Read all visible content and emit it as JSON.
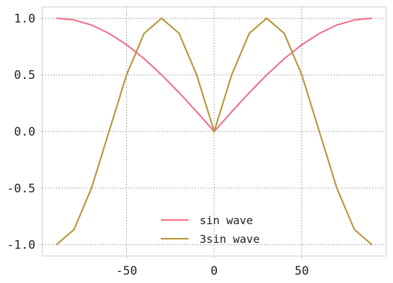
{
  "chart_data": {
    "type": "line",
    "title": "",
    "xlabel": "",
    "ylabel": "",
    "xlim": [
      -98.1,
      98.1
    ],
    "ylim": [
      -1.1,
      1.1
    ],
    "grid": true,
    "legend_position": "lower-center",
    "x_ticks": [
      -50,
      0,
      50
    ],
    "x_tick_labels": [
      "-50",
      "0",
      "50"
    ],
    "y_ticks": [
      1.0,
      0.5,
      0.0,
      -0.5,
      -1.0
    ],
    "y_tick_labels": [
      "1.0",
      "0.5",
      "0.0",
      "-0.5",
      "-1.0"
    ],
    "x": [
      -90,
      -80,
      -70,
      -60,
      -50,
      -40,
      -30,
      -20,
      -10,
      0,
      10,
      20,
      30,
      40,
      50,
      60,
      70,
      80,
      90
    ],
    "series": [
      {
        "name": "sin wave",
        "color": "#f0718a",
        "values": [
          1.0,
          0.985,
          0.94,
          0.866,
          0.766,
          0.643,
          0.5,
          0.342,
          0.174,
          0.0,
          0.174,
          0.342,
          0.5,
          0.643,
          0.766,
          0.866,
          0.94,
          0.985,
          1.0
        ]
      },
      {
        "name": "3sin wave",
        "color": "#b8963a",
        "values": [
          -1.0,
          -0.866,
          -0.5,
          0.0,
          0.5,
          0.866,
          1.0,
          0.866,
          0.5,
          0.0,
          0.5,
          0.866,
          1.0,
          0.866,
          0.5,
          0.0,
          -0.5,
          -0.866,
          -1.0
        ]
      }
    ]
  }
}
